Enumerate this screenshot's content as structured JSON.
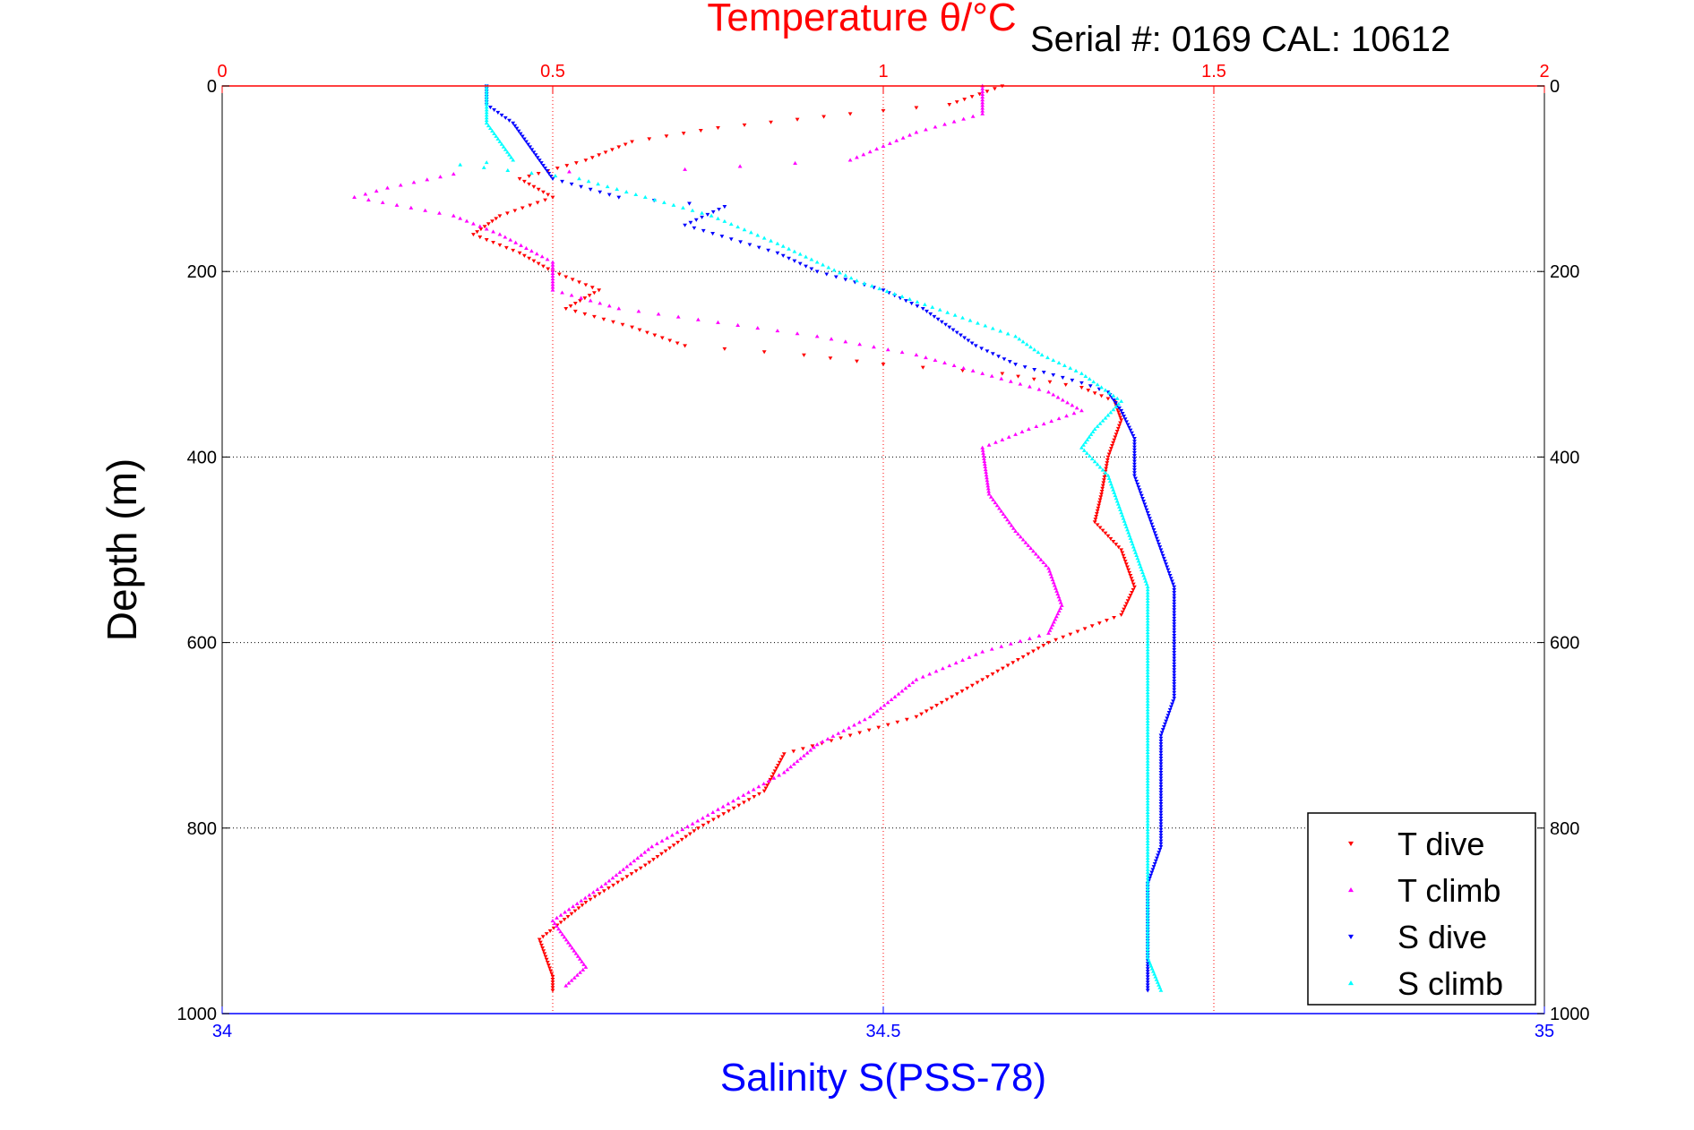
{
  "serial_text": "Serial #: 0169 CAL: 10612",
  "chart_data": {
    "type": "scatter",
    "title": "Temperature θ/°C",
    "ylabel": "Depth (m)",
    "xlabel": "Salinity S(PSS-78)",
    "grid": true,
    "legend_position": "bottom-right",
    "temperature_axis": {
      "range": [
        0,
        2
      ],
      "ticks": [
        0,
        0.5,
        1,
        1.5,
        2
      ],
      "tick_labels": [
        "0",
        "0.5",
        "1",
        "1.5",
        "2"
      ],
      "color": "#ff0000"
    },
    "salinity_axis": {
      "range": [
        34,
        35
      ],
      "ticks": [
        34,
        34.5,
        35
      ],
      "tick_labels": [
        "34",
        "34.5",
        "35"
      ],
      "color": "#0000ff"
    },
    "depth_axis": {
      "range": [
        0,
        1000
      ],
      "reversed": true,
      "ticks": [
        0,
        200,
        400,
        600,
        800,
        1000
      ],
      "tick_labels": [
        "0",
        "200",
        "400",
        "600",
        "800",
        "1000"
      ]
    },
    "series": [
      {
        "name": "T dive",
        "axis": "temperature",
        "color": "#ff0000",
        "marker": "triangle-down",
        "points": [
          [
            1.18,
            0
          ],
          [
            1.1,
            20
          ],
          [
            0.95,
            30
          ],
          [
            0.75,
            45
          ],
          [
            0.62,
            60
          ],
          [
            0.55,
            80
          ],
          [
            0.45,
            100
          ],
          [
            0.5,
            120
          ],
          [
            0.42,
            140
          ],
          [
            0.38,
            160
          ],
          [
            0.45,
            180
          ],
          [
            0.5,
            200
          ],
          [
            0.57,
            220
          ],
          [
            0.52,
            240
          ],
          [
            0.62,
            260
          ],
          [
            0.7,
            280
          ],
          [
            0.88,
            290
          ],
          [
            1.0,
            300
          ],
          [
            1.18,
            310
          ],
          [
            1.3,
            325
          ],
          [
            1.35,
            340
          ],
          [
            1.36,
            360
          ],
          [
            1.34,
            400
          ],
          [
            1.33,
            440
          ],
          [
            1.32,
            470
          ],
          [
            1.36,
            500
          ],
          [
            1.38,
            540
          ],
          [
            1.36,
            570
          ],
          [
            1.25,
            600
          ],
          [
            1.15,
            640
          ],
          [
            1.05,
            680
          ],
          [
            0.95,
            700
          ],
          [
            0.85,
            720
          ],
          [
            0.82,
            760
          ],
          [
            0.72,
            800
          ],
          [
            0.64,
            840
          ],
          [
            0.55,
            880
          ],
          [
            0.48,
            920
          ],
          [
            0.5,
            960
          ],
          [
            0.5,
            975
          ]
        ]
      },
      {
        "name": "T climb",
        "axis": "temperature",
        "color": "#ff00ff",
        "marker": "triangle-up",
        "points": [
          [
            1.15,
            0
          ],
          [
            1.15,
            30
          ],
          [
            1.05,
            50
          ],
          [
            0.95,
            80
          ],
          [
            0.7,
            90
          ],
          [
            0.35,
            95
          ],
          [
            0.25,
            110
          ],
          [
            0.2,
            120
          ],
          [
            0.35,
            140
          ],
          [
            0.42,
            160
          ],
          [
            0.5,
            190
          ],
          [
            0.5,
            220
          ],
          [
            0.6,
            240
          ],
          [
            0.75,
            255
          ],
          [
            0.9,
            270
          ],
          [
            1.05,
            290
          ],
          [
            1.15,
            310
          ],
          [
            1.25,
            330
          ],
          [
            1.3,
            350
          ],
          [
            1.22,
            370
          ],
          [
            1.15,
            390
          ],
          [
            1.16,
            440
          ],
          [
            1.2,
            480
          ],
          [
            1.25,
            520
          ],
          [
            1.27,
            560
          ],
          [
            1.25,
            590
          ],
          [
            1.15,
            610
          ],
          [
            1.05,
            640
          ],
          [
            0.98,
            680
          ],
          [
            0.9,
            710
          ],
          [
            0.85,
            740
          ],
          [
            0.75,
            780
          ],
          [
            0.65,
            820
          ],
          [
            0.58,
            860
          ],
          [
            0.5,
            900
          ],
          [
            0.55,
            950
          ],
          [
            0.52,
            970
          ]
        ]
      },
      {
        "name": "S dive",
        "axis": "salinity",
        "color": "#0000ff",
        "marker": "triangle-down",
        "points": [
          [
            34.2,
            0
          ],
          [
            34.2,
            20
          ],
          [
            34.22,
            40
          ],
          [
            34.23,
            60
          ],
          [
            34.24,
            80
          ],
          [
            34.25,
            100
          ],
          [
            34.3,
            120
          ],
          [
            34.38,
            130
          ],
          [
            34.35,
            150
          ],
          [
            34.42,
            180
          ],
          [
            34.45,
            200
          ],
          [
            34.5,
            220
          ],
          [
            34.53,
            240
          ],
          [
            34.55,
            260
          ],
          [
            34.57,
            280
          ],
          [
            34.6,
            300
          ],
          [
            34.65,
            320
          ],
          [
            34.67,
            330
          ],
          [
            34.68,
            350
          ],
          [
            34.69,
            380
          ],
          [
            34.69,
            420
          ],
          [
            34.7,
            460
          ],
          [
            34.71,
            500
          ],
          [
            34.72,
            540
          ],
          [
            34.72,
            580
          ],
          [
            34.72,
            620
          ],
          [
            34.72,
            660
          ],
          [
            34.71,
            700
          ],
          [
            34.71,
            740
          ],
          [
            34.71,
            780
          ],
          [
            34.71,
            820
          ],
          [
            34.7,
            860
          ],
          [
            34.7,
            900
          ],
          [
            34.7,
            940
          ],
          [
            34.7,
            975
          ]
        ]
      },
      {
        "name": "S climb",
        "axis": "salinity",
        "color": "#00ffff",
        "marker": "triangle-up",
        "points": [
          [
            34.2,
            0
          ],
          [
            34.2,
            20
          ],
          [
            34.2,
            40
          ],
          [
            34.21,
            60
          ],
          [
            34.22,
            80
          ],
          [
            34.18,
            85
          ],
          [
            34.27,
            100
          ],
          [
            34.32,
            120
          ],
          [
            34.37,
            140
          ],
          [
            34.42,
            170
          ],
          [
            34.45,
            190
          ],
          [
            34.48,
            210
          ],
          [
            34.52,
            230
          ],
          [
            34.56,
            250
          ],
          [
            34.6,
            270
          ],
          [
            34.62,
            290
          ],
          [
            34.65,
            310
          ],
          [
            34.68,
            340
          ],
          [
            34.66,
            370
          ],
          [
            34.65,
            390
          ],
          [
            34.67,
            420
          ],
          [
            34.68,
            460
          ],
          [
            34.69,
            500
          ],
          [
            34.7,
            540
          ],
          [
            34.7,
            580
          ],
          [
            34.7,
            620
          ],
          [
            34.7,
            660
          ],
          [
            34.7,
            700
          ],
          [
            34.7,
            740
          ],
          [
            34.7,
            780
          ],
          [
            34.7,
            820
          ],
          [
            34.7,
            860
          ],
          [
            34.7,
            900
          ],
          [
            34.7,
            940
          ],
          [
            34.71,
            975
          ]
        ]
      }
    ]
  }
}
